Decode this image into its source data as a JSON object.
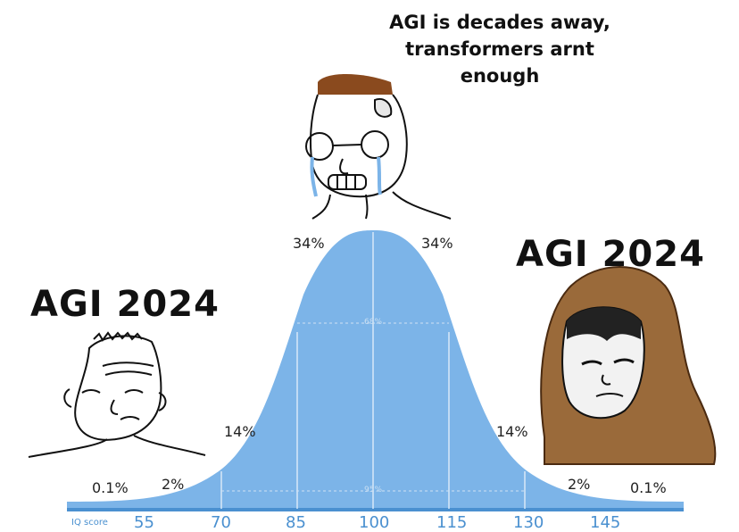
{
  "caption": {
    "line1": "AGI is decades away,",
    "line2": "transformers arnt",
    "line3": "enough"
  },
  "left_label": "AGI 2024",
  "right_label": "AGI 2024",
  "bell_curve": {
    "fill_color": "#7cb4e8",
    "axis_label": "IQ score",
    "ticks": [
      "55",
      "70",
      "85",
      "100",
      "115",
      "130",
      "145"
    ],
    "percentages": {
      "far_left": "0.1%",
      "left_2": "2%",
      "left_14": "14%",
      "left_34": "34%",
      "right_34": "34%",
      "right_14": "14%",
      "right_2": "2%",
      "far_right": "0.1%"
    },
    "inner_68": "68%",
    "inner_95": "95%"
  }
}
